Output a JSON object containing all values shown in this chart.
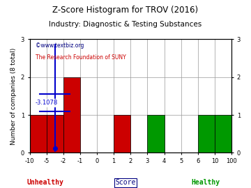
{
  "title": "Z-Score Histogram for TROV (2016)",
  "subtitle": "Industry: Diagnostic & Testing Substances",
  "watermark1": "©www.textbiz.org",
  "watermark2": "The Research Foundation of SUNY",
  "xlabel_center": "Score",
  "xlabel_left": "Unhealthy",
  "xlabel_right": "Healthy",
  "ylabel": "Number of companies (8 total)",
  "trov_zscore_label": "-3.1078",
  "trov_bin_index": 1,
  "bin_edges": [
    -10,
    -5,
    -2,
    -1,
    0,
    1,
    2,
    3,
    4,
    5,
    6,
    10,
    100
  ],
  "bin_labels": [
    "-10",
    "-5",
    "-2",
    "-1",
    "0",
    "1",
    "2",
    "3",
    "4",
    "5",
    "6",
    "10",
    "100"
  ],
  "counts": [
    1,
    1,
    2,
    0,
    0,
    1,
    0,
    1,
    0,
    0,
    1,
    1
  ],
  "bar_colors": [
    "#cc0000",
    "#cc0000",
    "#cc0000",
    "#cc0000",
    "#cc0000",
    "#cc0000",
    "#cc0000",
    "#009900",
    "#009900",
    "#009900",
    "#009900",
    "#009900"
  ],
  "ylim": [
    0,
    3
  ],
  "yticks": [
    0,
    1,
    2,
    3
  ],
  "background_color": "#ffffff",
  "grid_color": "#999999",
  "title_color": "#000000",
  "subtitle_color": "#000000",
  "unhealthy_color": "#cc0000",
  "healthy_color": "#009900",
  "score_color": "#000080",
  "watermark_color1": "#000080",
  "watermark_color2": "#cc0000",
  "marker_color": "#0000cc",
  "title_fontsize": 8.5,
  "subtitle_fontsize": 7.5,
  "axis_label_fontsize": 6.5,
  "tick_fontsize": 6,
  "annotation_fontsize": 6,
  "right_yticks": [
    0,
    1,
    2,
    3
  ]
}
